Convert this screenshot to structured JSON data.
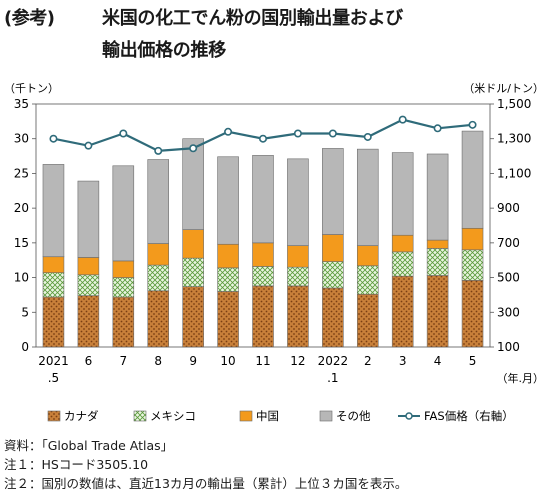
{
  "title": {
    "prefix": "(参考)",
    "line1": "米国の化工でん粉の国別輸出量および",
    "line2": "輸出価格の推移"
  },
  "notes": [
    "資料：「Global Trade Atlas」",
    "注１：HSコード3505.10",
    "注２：国別の数値は、直近13カ月の輸出量（累計）上位３カ国を表示。"
  ],
  "chart_data": {
    "type": "bar",
    "stacked": true,
    "categories": [
      "2021\n.5",
      "6",
      "7",
      "8",
      "9",
      "10",
      "11",
      "12",
      "2022\n.1",
      "2",
      "3",
      "4",
      "5"
    ],
    "xlabel_unit": "（年.月）",
    "ylabel_left": "（千トン）",
    "ylabel_right": "（米ドル/トン）",
    "ylim_left": [
      0,
      35
    ],
    "yticks_left": [
      0,
      5,
      10,
      15,
      20,
      25,
      30,
      35
    ],
    "ylim_right": [
      100,
      1500
    ],
    "yticks_right": [
      "100",
      "300",
      "500",
      "700",
      "900",
      "1,100",
      "1,300",
      "1,500"
    ],
    "legend_position": "bottom",
    "series": [
      {
        "name": "カナダ",
        "kind": "bar",
        "color": "#c8803a",
        "values": [
          7.2,
          7.4,
          7.2,
          8.1,
          8.7,
          8.0,
          8.8,
          8.8,
          8.5,
          7.6,
          10.2,
          10.3,
          9.6
        ]
      },
      {
        "name": "メキシコ",
        "kind": "bar",
        "color": "#a9d08e",
        "values": [
          3.5,
          3.0,
          2.8,
          3.7,
          4.1,
          3.4,
          2.8,
          2.7,
          3.8,
          4.1,
          3.5,
          3.9,
          4.4
        ]
      },
      {
        "name": "中国",
        "kind": "bar",
        "color": "#f39a1c",
        "values": [
          2.3,
          2.5,
          2.4,
          3.1,
          4.1,
          3.4,
          3.4,
          3.1,
          3.9,
          2.9,
          2.4,
          1.2,
          3.1
        ]
      },
      {
        "name": "その他",
        "kind": "bar",
        "color": "#b7b7b7",
        "values": [
          13.3,
          11.0,
          13.7,
          12.1,
          13.1,
          12.6,
          12.6,
          12.5,
          12.4,
          13.9,
          11.9,
          12.4,
          14.0
        ]
      },
      {
        "name": "FAS価格（右軸）",
        "kind": "line",
        "axis": "right",
        "color": "#2f6b7a",
        "values": [
          1300,
          1260,
          1330,
          1230,
          1245,
          1340,
          1300,
          1330,
          1330,
          1310,
          1410,
          1360,
          1380
        ]
      }
    ]
  }
}
